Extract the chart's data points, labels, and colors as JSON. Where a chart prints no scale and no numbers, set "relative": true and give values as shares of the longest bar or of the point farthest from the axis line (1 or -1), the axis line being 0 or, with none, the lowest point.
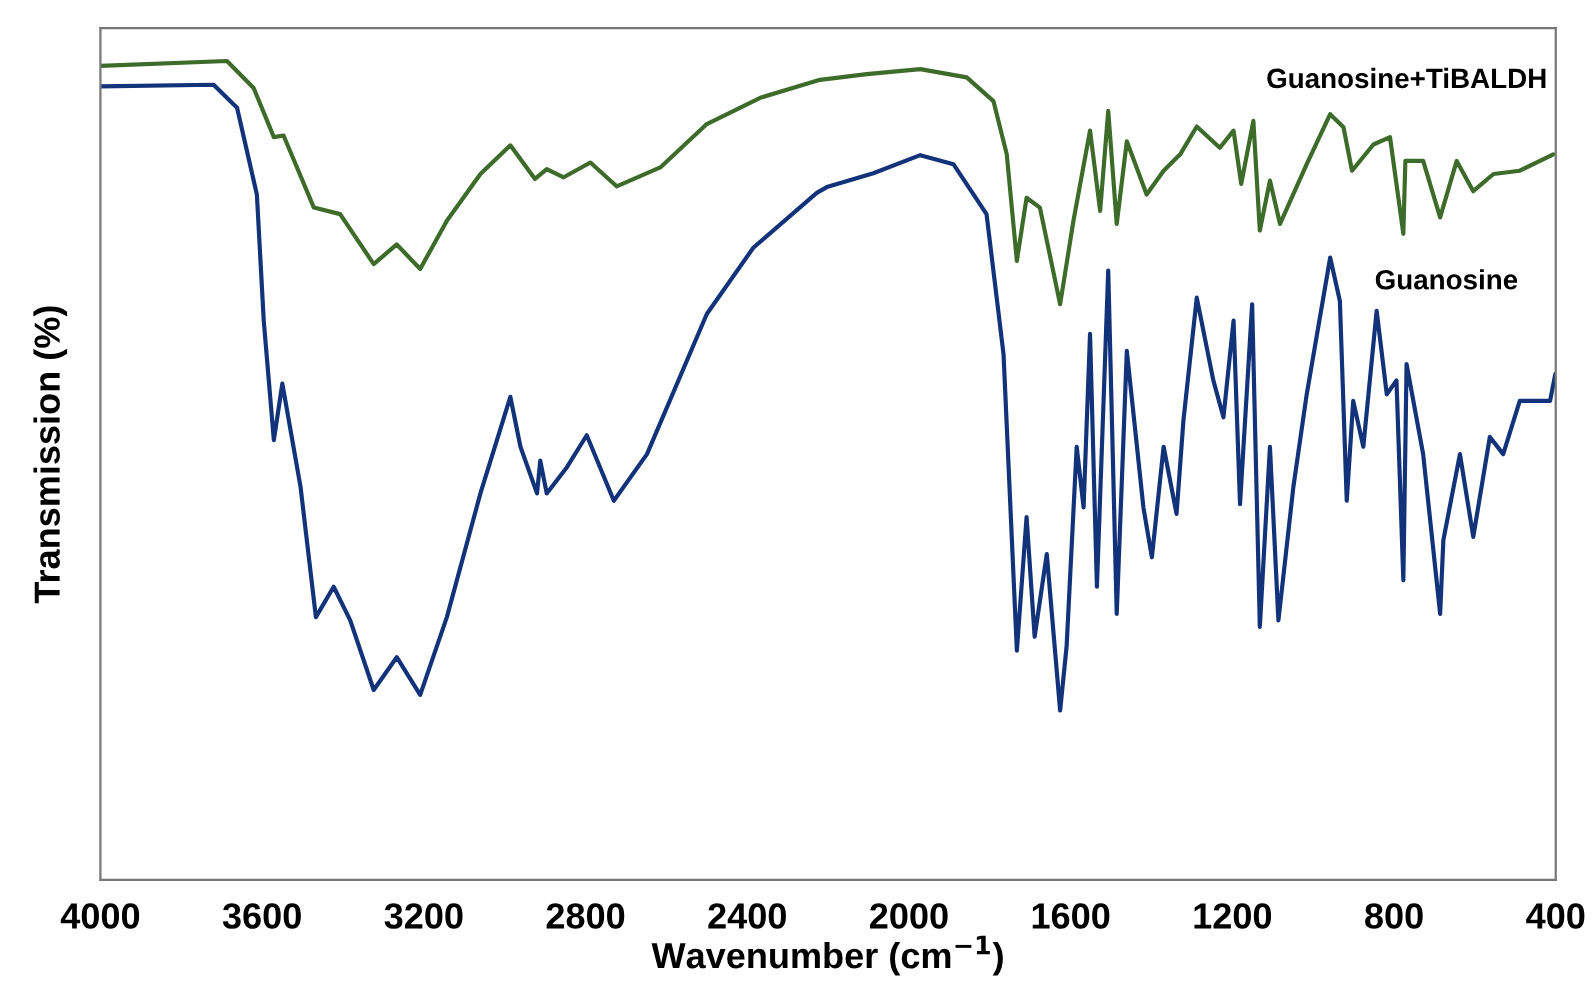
{
  "chart_data": {
    "type": "line",
    "relative": true,
    "xlabel": "Wavenumber (cm$^{−1}$)",
    "ylabel": "Transmission (%)",
    "xlim": [
      4000,
      400
    ],
    "xticks": [
      4000,
      3600,
      3200,
      2800,
      2400,
      2000,
      1600,
      1200,
      800,
      400
    ],
    "tick_labels": "x",
    "grid": false,
    "legend": false,
    "series": [
      {
        "name": "Guanosine+TiBALDH",
        "color": "#3d6b2a",
        "x": [
          4000,
          3687,
          3621,
          3571,
          3547,
          3472,
          3407,
          3324,
          3267,
          3209,
          3143,
          3060,
          2986,
          2925,
          2896,
          2854,
          2788,
          2723,
          2615,
          2500,
          2368,
          2220,
          2104,
          1972,
          1857,
          1791,
          1758,
          1733,
          1709,
          1676,
          1626,
          1593,
          1552,
          1527,
          1507,
          1486,
          1461,
          1412,
          1370,
          1329,
          1288,
          1231,
          1197,
          1178,
          1148,
          1132,
          1107,
          1082,
          1016,
          958,
          925,
          904,
          851,
          810,
          777,
          772,
          728,
          686,
          645,
          604,
          554,
          489,
          406
        ],
        "values": [
          0.994,
          1.0,
          0.967,
          0.907,
          0.909,
          0.821,
          0.813,
          0.752,
          0.776,
          0.746,
          0.805,
          0.862,
          0.897,
          0.856,
          0.868,
          0.858,
          0.876,
          0.847,
          0.87,
          0.923,
          0.955,
          0.977,
          0.984,
          0.99,
          0.98,
          0.951,
          0.886,
          0.756,
          0.833,
          0.821,
          0.703,
          0.805,
          0.915,
          0.817,
          0.939,
          0.801,
          0.902,
          0.837,
          0.866,
          0.886,
          0.92,
          0.894,
          0.915,
          0.85,
          0.927,
          0.793,
          0.854,
          0.801,
          0.874,
          0.935,
          0.919,
          0.866,
          0.898,
          0.907,
          0.789,
          0.878,
          0.878,
          0.809,
          0.878,
          0.841,
          0.862,
          0.866,
          0.886
        ]
      },
      {
        "name": "Guanosine",
        "color": "#12337a",
        "x": [
          4000,
          3720,
          3662,
          3613,
          3596,
          3571,
          3550,
          3505,
          3467,
          3423,
          3382,
          3324,
          3267,
          3209,
          3143,
          3060,
          2986,
          2961,
          2920,
          2912,
          2896,
          2846,
          2797,
          2730,
          2648,
          2500,
          2385,
          2228,
          2203,
          2088,
          1972,
          1890,
          1808,
          1766,
          1733,
          1709,
          1689,
          1659,
          1626,
          1610,
          1585,
          1568,
          1552,
          1535,
          1507,
          1486,
          1461,
          1420,
          1399,
          1370,
          1338,
          1321,
          1288,
          1247,
          1222,
          1197,
          1181,
          1151,
          1132,
          1107,
          1086,
          1049,
          1016,
          958,
          934,
          917,
          901,
          876,
          843,
          818,
          794,
          777,
          769,
          728,
          686,
          678,
          637,
          604,
          563,
          530,
          489,
          414,
          401
        ],
        "values": [
          0.969,
          0.971,
          0.943,
          0.837,
          0.683,
          0.537,
          0.606,
          0.48,
          0.321,
          0.358,
          0.317,
          0.232,
          0.272,
          0.226,
          0.321,
          0.472,
          0.59,
          0.529,
          0.472,
          0.512,
          0.472,
          0.504,
          0.543,
          0.463,
          0.52,
          0.691,
          0.772,
          0.839,
          0.846,
          0.863,
          0.885,
          0.874,
          0.813,
          0.642,
          0.28,
          0.443,
          0.297,
          0.398,
          0.207,
          0.285,
          0.529,
          0.455,
          0.667,
          0.358,
          0.744,
          0.325,
          0.646,
          0.455,
          0.394,
          0.529,
          0.447,
          0.561,
          0.711,
          0.61,
          0.565,
          0.683,
          0.459,
          0.703,
          0.309,
          0.529,
          0.317,
          0.48,
          0.593,
          0.76,
          0.707,
          0.463,
          0.585,
          0.529,
          0.695,
          0.593,
          0.61,
          0.366,
          0.63,
          0.52,
          0.325,
          0.415,
          0.52,
          0.419,
          0.541,
          0.52,
          0.585,
          0.585,
          0.618
        ]
      }
    ]
  }
}
